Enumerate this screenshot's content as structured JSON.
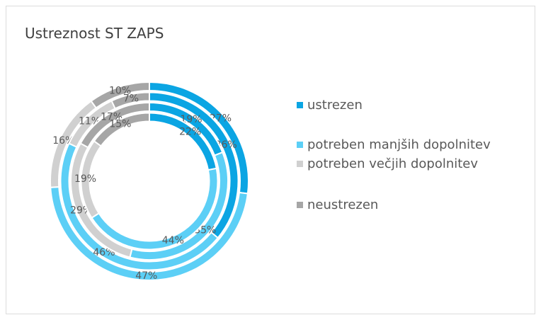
{
  "chart_data": {
    "type": "multi-donut",
    "title": "Ustreznost ST ZAPS",
    "categories": [
      "ustrezen",
      "potreben manjših dopolnitev",
      "potreben večjih dopolnitev",
      "neustrezen"
    ],
    "colors": [
      "#0ba5e3",
      "#5ccff6",
      "#d0d0d0",
      "#a6a6a6"
    ],
    "rings": [
      {
        "values": [
          27,
          47,
          16,
          10
        ],
        "value_labels": [
          "27%",
          "47%",
          "16%",
          "10%"
        ]
      },
      {
        "values": [
          36,
          46,
          11,
          7
        ],
        "value_labels": [
          "36%",
          "46%",
          "11%",
          "7%"
        ]
      },
      {
        "values": [
          19,
          35,
          29,
          17
        ],
        "value_labels": [
          "19%",
          "35%",
          "29%",
          "17%"
        ]
      },
      {
        "values": [
          22,
          44,
          19,
          15
        ],
        "value_labels": [
          "22%",
          "44%",
          "19%",
          "15%"
        ]
      }
    ],
    "legend": "right"
  }
}
